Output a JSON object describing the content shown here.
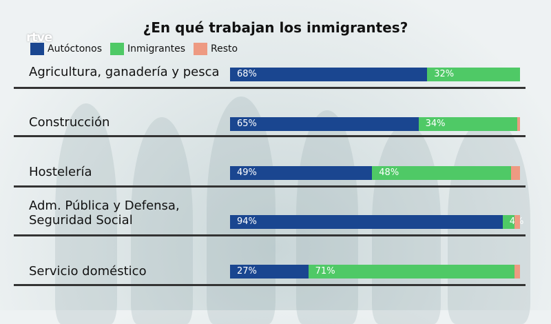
{
  "logo": "rtve",
  "chart_data": {
    "type": "bar",
    "orientation": "horizontal-stacked",
    "title": "¿En qué trabajan los inmigrantes?",
    "legend_position": "top-left",
    "series": [
      {
        "name": "Autóctonos",
        "color": "#1a4690",
        "values": [
          68,
          65,
          49,
          94,
          27
        ],
        "labels": [
          "68%",
          "65%",
          "49%",
          "94%",
          "27%"
        ]
      },
      {
        "name": "Inmigrantes",
        "color": "#4fc966",
        "values": [
          32,
          34,
          48,
          4,
          71
        ],
        "labels": [
          "32%",
          "34%",
          "48%",
          "4%",
          "71%"
        ]
      },
      {
        "name": "Resto",
        "color": "#ee9a82",
        "values": [
          0,
          1,
          3,
          2,
          2
        ]
      }
    ],
    "categories": [
      "Agricultura, ganadería y pesca",
      "Construcción",
      "Hostelería",
      "Adm. Pública y Defensa,\nSeguridad Social",
      "Servicio doméstico"
    ],
    "xlim": [
      0,
      100
    ]
  }
}
